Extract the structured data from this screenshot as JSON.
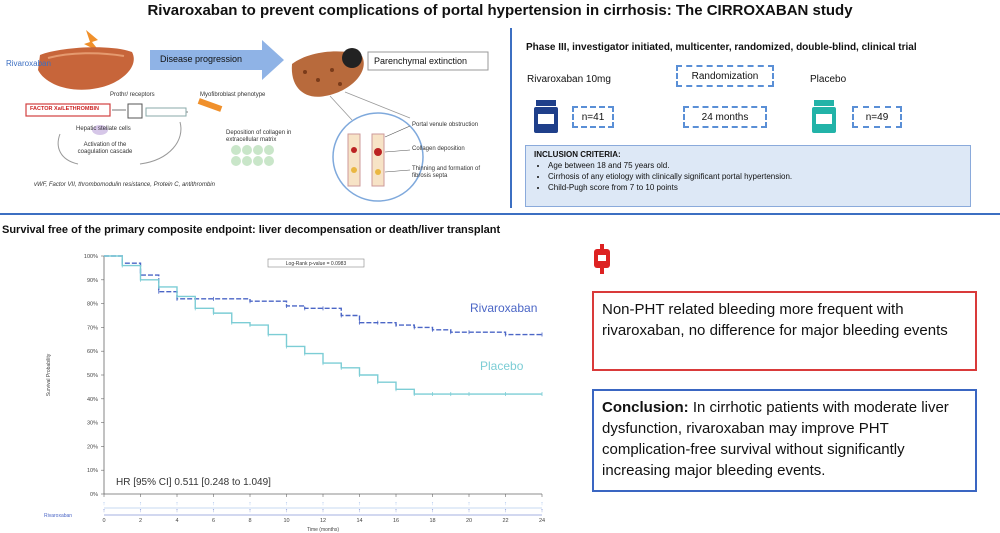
{
  "title": "Rivaroxaban to prevent complications of portal hypertension in cirrhosis: The CIRROXABAN study",
  "mechanism": {
    "rivaroxaban_label": "Rivaroxaban",
    "disease_progression": "Disease progression",
    "parenchymal_extinction": "Parenchymal extinction",
    "factor_label": "FACTOR Xa/LETHROMBIN",
    "par_receptors": "Prothr/ receptors",
    "myofibroblast": "Myofibroblast phenotype",
    "stellate_cells": "Hepatic stellate cells",
    "activation": "Activation of the coagulation cascade",
    "collagen_deposition": "Deposition of collagen in extracellular matrix",
    "portal_venule": "Portal venule obstruction",
    "collagen": "Collagen deposition",
    "thinning": "Thinning and formation of fibrosis septa",
    "factors_note": "vWF, Factor VII, thrombomodulin resistance, Protein C, antithrombin"
  },
  "design": {
    "heading": "Phase III, investigator initiated, multicenter, randomized, double-blind, clinical trial",
    "arm_a": "Rivaroxaban 10mg",
    "randomization": "Randomization",
    "arm_b": "Placebo",
    "n_a": "n=41",
    "duration": "24 months",
    "n_b": "n=49"
  },
  "inclusion": {
    "heading": "INCLUSION CRITERIA:",
    "items": [
      "Age between 18 and 75 years old.",
      "Cirrhosis of any etiology with clinically significant portal hypertension.",
      "Child-Pugh score from 7 to 10 points"
    ]
  },
  "km": {
    "title": "Survival free of the primary composite endpoint: liver decompensation or death/liver transplant",
    "logrank": "Log-Rank p-value = 0.0983",
    "hr": "HR [95% CI] 0.511 [0.248 to 1.049]",
    "ylabel": "Survival Probability",
    "xlabel": "Time (months)",
    "risk_label": "Rivaroxaban",
    "label_riva": "Rivaroxaban",
    "label_placebo": "Placebo"
  },
  "chart_data": {
    "type": "line",
    "x_ticks": [
      0,
      2,
      4,
      6,
      8,
      10,
      12,
      14,
      16,
      18,
      20,
      22,
      24
    ],
    "y_ticks": [
      "0%",
      "10%",
      "20%",
      "30%",
      "40%",
      "50%",
      "60%",
      "70%",
      "80%",
      "90%",
      "100%"
    ],
    "xlim": [
      0,
      24
    ],
    "ylim": [
      0,
      100
    ],
    "series": [
      {
        "name": "Rivaroxaban",
        "color": "#4b66c6",
        "dash": true,
        "x": [
          0,
          1,
          2,
          3,
          4,
          6,
          8,
          10,
          11,
          12,
          13,
          14,
          15,
          16,
          17,
          18,
          19,
          20,
          22,
          24
        ],
        "y": [
          100,
          97,
          92,
          85,
          82,
          82,
          81,
          79,
          78,
          78,
          75,
          72,
          72,
          71,
          70,
          69,
          68,
          68,
          67,
          67
        ]
      },
      {
        "name": "Placebo",
        "color": "#7ccdd5",
        "dash": false,
        "x": [
          0,
          1,
          2,
          3,
          4,
          5,
          6,
          7,
          8,
          9,
          10,
          11,
          12,
          13,
          14,
          15,
          16,
          17,
          18,
          19,
          20,
          22,
          24
        ],
        "y": [
          100,
          96,
          90,
          87,
          83,
          78,
          76,
          72,
          71,
          67,
          62,
          59,
          55,
          53,
          50,
          47,
          44,
          42,
          42,
          42,
          42,
          42,
          42
        ]
      }
    ]
  },
  "bleeding": {
    "text": "Non-PHT related bleeding more frequent with rivaroxaban, no difference for major bleeding events"
  },
  "conclusion": {
    "label": "Conclusion:",
    "text": " In cirrhotic patients with moderate liver dysfunction, rivaroxaban may improve PHT complication-free survival without significantly increasing major bleeding events."
  }
}
